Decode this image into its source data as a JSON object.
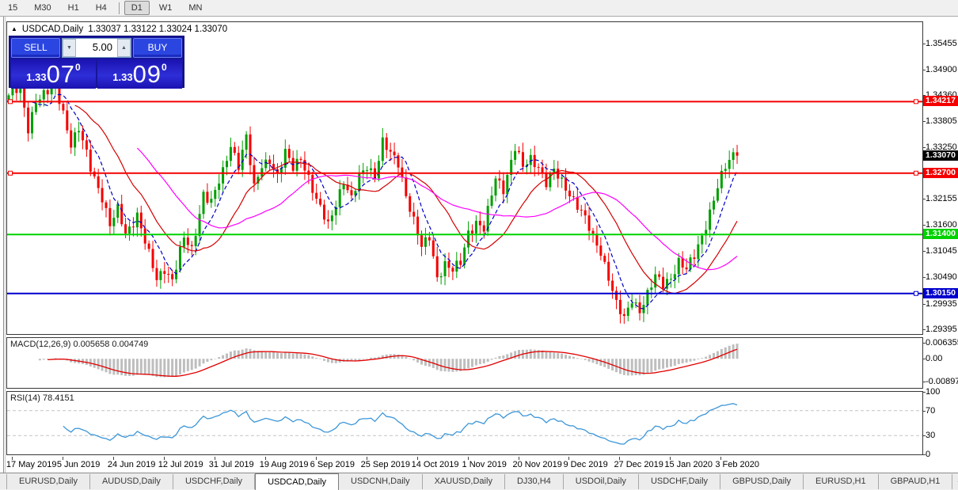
{
  "toolbar": {
    "timeframes": [
      "15",
      "M30",
      "H1",
      "H4",
      "D1",
      "W1",
      "MN"
    ],
    "active": "D1",
    "separator_before": "D1"
  },
  "chart_header": {
    "collapse_icon": "▲",
    "symbol": "USDCAD,Daily",
    "ohlc_text": "1.33037 1.33122 1.33024 1.33070"
  },
  "trade_panel": {
    "sell_label": "SELL",
    "buy_label": "BUY",
    "volume": "5.00",
    "down_arrow_icon": "▼",
    "up_arrow_icon": "▲",
    "sell_price": {
      "prefix": "1.33",
      "big": "07",
      "sup": "0"
    },
    "buy_price": {
      "prefix": "1.33",
      "big": "09",
      "sup": "0"
    }
  },
  "indicators": {
    "macd_label": "MACD(12,26,9)",
    "macd_values": "0.005658 0.004749",
    "rsi_label": "RSI(14)",
    "rsi_value": "78.4151"
  },
  "tabs": {
    "items": [
      "EURUSD,Daily",
      "AUDUSD,Daily",
      "USDCHF,Daily",
      "USDCAD,Daily",
      "USDCNH,Daily",
      "XAUUSD,Daily",
      "DJ30,H4",
      "USDOil,Daily",
      "USDCHF,Daily",
      "GBPUSD,Daily",
      "EURUSD,H1",
      "GBPAUD,H1"
    ],
    "active_index": 3,
    "left_arrow_icon": "◂",
    "right_arrow_icon": "▸"
  },
  "chart_data": [
    {
      "type": "candlestick",
      "title": "USDCAD,Daily",
      "ohlc_current": {
        "open": 1.33037,
        "high": 1.33122,
        "low": 1.33024,
        "close": 1.3307
      },
      "ylim": [
        1.2929,
        1.359
      ],
      "y_ticks": [
        {
          "label": "1.35455",
          "value": 1.35455
        },
        {
          "label": "1.34900",
          "value": 1.349
        },
        {
          "label": "1.34360",
          "value": 1.3436
        },
        {
          "label": "1.33805",
          "value": 1.33805
        },
        {
          "label": "1.33250",
          "value": 1.3325
        },
        {
          "label": "1.32155",
          "value": 1.32155
        },
        {
          "label": "1.31600",
          "value": 1.316
        },
        {
          "label": "1.31045",
          "value": 1.31045
        },
        {
          "label": "1.30490",
          "value": 1.3049
        },
        {
          "label": "1.29935",
          "value": 1.29935
        },
        {
          "label": "1.29395",
          "value": 1.29395
        }
      ],
      "x_tick_labels": [
        "17 May 2019",
        "5 Jun 2019",
        "24 Jun 2019",
        "12 Jul 2019",
        "31 Jul 2019",
        "19 Aug 2019",
        "6 Sep 2019",
        "25 Sep 2019",
        "14 Oct 2019",
        "1 Nov 2019",
        "20 Nov 2019",
        "9 Dec 2019",
        "27 Dec 2019",
        "15 Jan 2020",
        "3 Feb 2020"
      ],
      "x_tick_candle_indices": [
        1,
        14,
        27,
        40,
        53,
        66,
        79,
        92,
        105,
        118,
        131,
        144,
        157,
        170,
        183
      ],
      "hlines": [
        {
          "value": 1.34217,
          "label": "1.34217",
          "color": "#f40000",
          "handles": [
            "left",
            "right"
          ]
        },
        {
          "value": 1.327,
          "label": "1.32700",
          "color": "#f40000",
          "handles": [
            "left",
            "right"
          ]
        },
        {
          "value": 1.314,
          "label": "1.31400",
          "color": "#00d200",
          "handles": []
        },
        {
          "value": 1.3015,
          "label": "1.30150",
          "color": "#0000cd",
          "handles": [
            "right"
          ]
        }
      ],
      "current_price_badge": {
        "value": 1.3307,
        "label": "1.33070",
        "color": "#000000"
      },
      "up_color": "#009f00",
      "down_color": "#f40000",
      "moving_averages": [
        {
          "period": 7,
          "color": "#0000c8",
          "dashed": true
        },
        {
          "period": 18,
          "color": "#d40000",
          "dashed": false
        },
        {
          "period": 34,
          "color": "#ff00ff",
          "dashed": false
        }
      ],
      "last_close": 1.3307,
      "price_path": [
        [
          0,
          1.3435
        ],
        [
          3,
          1.3447
        ],
        [
          5,
          1.3365
        ],
        [
          7,
          1.3428
        ],
        [
          10,
          1.344
        ],
        [
          12,
          1.3452
        ],
        [
          14,
          1.34
        ],
        [
          16,
          1.3335
        ],
        [
          18,
          1.3362
        ],
        [
          21,
          1.328
        ],
        [
          24,
          1.3222
        ],
        [
          26,
          1.316
        ],
        [
          28,
          1.319
        ],
        [
          30,
          1.314
        ],
        [
          33,
          1.3185
        ],
        [
          36,
          1.3095
        ],
        [
          38,
          1.3042
        ],
        [
          40,
          1.307
        ],
        [
          42,
          1.3046
        ],
        [
          45,
          1.313
        ],
        [
          47,
          1.3105
        ],
        [
          50,
          1.323
        ],
        [
          52,
          1.3208
        ],
        [
          55,
          1.327
        ],
        [
          57,
          1.3332
        ],
        [
          59,
          1.329
        ],
        [
          61,
          1.3345
        ],
        [
          63,
          1.3235
        ],
        [
          65,
          1.3288
        ],
        [
          67,
          1.3302
        ],
        [
          69,
          1.3262
        ],
        [
          71,
          1.331
        ],
        [
          73,
          1.3282
        ],
        [
          75,
          1.3308
        ],
        [
          77,
          1.326
        ],
        [
          79,
          1.3208
        ],
        [
          82,
          1.3162
        ],
        [
          84,
          1.321
        ],
        [
          86,
          1.3252
        ],
        [
          88,
          1.321
        ],
        [
          90,
          1.3262
        ],
        [
          92,
          1.329
        ],
        [
          94,
          1.3265
        ],
        [
          96,
          1.3332
        ],
        [
          98,
          1.331
        ],
        [
          100,
          1.3295
        ],
        [
          102,
          1.3226
        ],
        [
          104,
          1.3166
        ],
        [
          106,
          1.311
        ],
        [
          108,
          1.3138
        ],
        [
          110,
          1.3052
        ],
        [
          112,
          1.3075
        ],
        [
          114,
          1.306
        ],
        [
          116,
          1.3082
        ],
        [
          118,
          1.3148
        ],
        [
          120,
          1.3165
        ],
        [
          122,
          1.3148
        ],
        [
          125,
          1.3262
        ],
        [
          127,
          1.324
        ],
        [
          130,
          1.3322
        ],
        [
          132,
          1.328
        ],
        [
          134,
          1.3302
        ],
        [
          136,
          1.3288
        ],
        [
          138,
          1.3248
        ],
        [
          140,
          1.3272
        ],
        [
          142,
          1.3252
        ],
        [
          144,
          1.323
        ],
        [
          146,
          1.3202
        ],
        [
          148,
          1.317
        ],
        [
          150,
          1.3132
        ],
        [
          152,
          1.3106
        ],
        [
          154,
          1.3052
        ],
        [
          156,
          1.299
        ],
        [
          158,
          1.2958
        ],
        [
          160,
          1.3005
        ],
        [
          162,
          1.2982
        ],
        [
          164,
          1.3012
        ],
        [
          166,
          1.3048
        ],
        [
          168,
          1.3035
        ],
        [
          170,
          1.3052
        ],
        [
          172,
          1.3082
        ],
        [
          174,
          1.3062
        ],
        [
          176,
          1.3095
        ],
        [
          178,
          1.314
        ],
        [
          180,
          1.3188
        ],
        [
          182,
          1.3238
        ],
        [
          184,
          1.3282
        ],
        [
          186,
          1.3312
        ],
        [
          187,
          1.3307
        ]
      ]
    },
    {
      "type": "macd",
      "label": "MACD(12,26,9)",
      "fast": 12,
      "slow": 26,
      "signal": 9,
      "main_value": 0.005658,
      "signal_value": 0.004749,
      "ylim": [
        -0.0115,
        0.0082
      ],
      "y_ticks": [
        {
          "label": "0.006355",
          "value": 0.006355
        },
        {
          "label": "0.00",
          "value": 0
        },
        {
          "label": "-0.008978",
          "value": -0.008978
        }
      ],
      "histogram_color": "#bebebe",
      "signal_color": "#e00000"
    },
    {
      "type": "rsi",
      "label": "RSI(14)",
      "period": 14,
      "current_value": 78.4151,
      "ylim": [
        0,
        100
      ],
      "y_ticks": [
        {
          "label": "100",
          "value": 100
        },
        {
          "label": "70",
          "value": 70
        },
        {
          "label": "30",
          "value": 30
        },
        {
          "label": "0",
          "value": 0
        }
      ],
      "levels": [
        70,
        30
      ],
      "line_color": "#3b96d8",
      "level_color": "#c4c4c4"
    }
  ]
}
